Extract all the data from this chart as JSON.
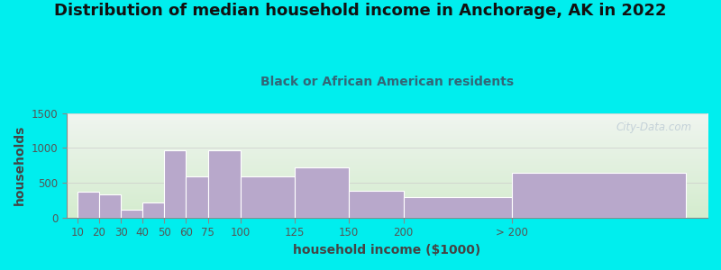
{
  "title": "Distribution of median household income in Anchorage, AK in 2022",
  "subtitle": "Black or African American residents",
  "xlabel": "household income ($1000)",
  "ylabel": "households",
  "bar_labels": [
    "10",
    "20",
    "30",
    "40",
    "50",
    "60",
    "75",
    "100",
    "125",
    "150",
    "200",
    "> 200"
  ],
  "bar_values": [
    370,
    330,
    120,
    215,
    960,
    590,
    960,
    590,
    720,
    385,
    300,
    640
  ],
  "bar_lefts": [
    0,
    10,
    20,
    30,
    40,
    50,
    60,
    75,
    100,
    125,
    150,
    200
  ],
  "bar_widths": [
    10,
    10,
    10,
    10,
    10,
    10,
    15,
    25,
    25,
    25,
    50,
    80
  ],
  "bar_color": "#b8a8cb",
  "bar_edge_color": "#ffffff",
  "ylim": [
    0,
    1500
  ],
  "yticks": [
    0,
    500,
    1000,
    1500
  ],
  "bg_color": "#00eeee",
  "plot_bg_top": "#f0f5f0",
  "plot_bg_bottom": "#d4ecce",
  "watermark": "City-Data.com",
  "title_fontsize": 13,
  "subtitle_fontsize": 10,
  "axis_label_fontsize": 10,
  "tick_label_color": "#555555",
  "title_color": "#111111",
  "subtitle_color": "#336677",
  "xlabel_color": "#444444",
  "ylabel_color": "#444444"
}
